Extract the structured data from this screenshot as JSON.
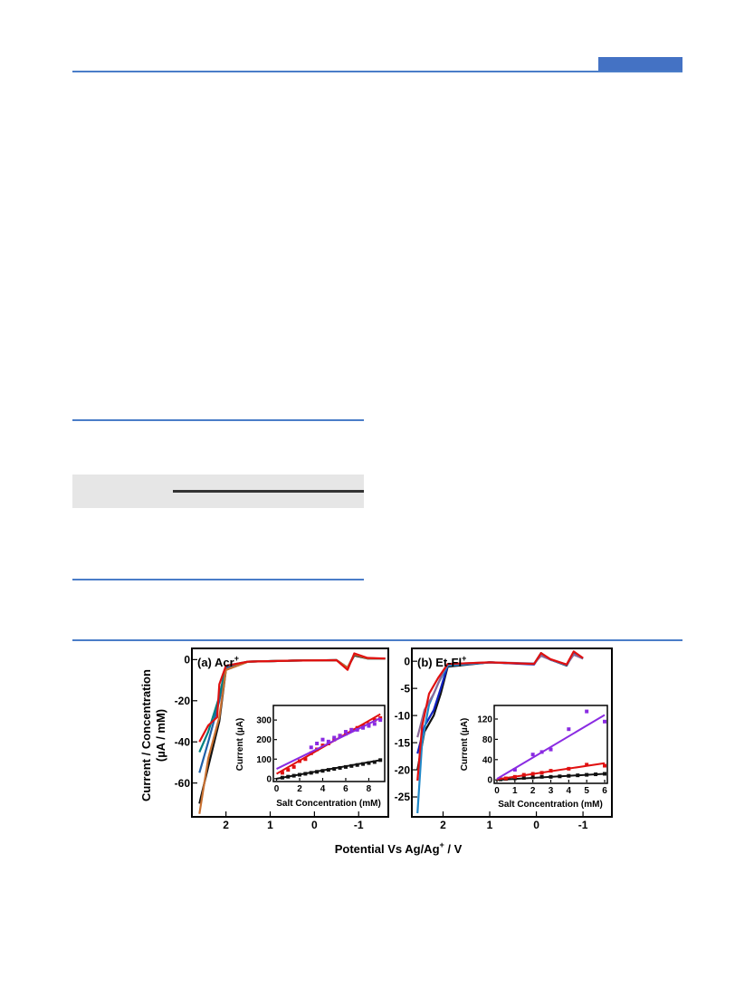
{
  "header": {
    "accent_color": "#4472c4",
    "rule_color": "#4a7dc8"
  },
  "figure": {
    "shared_ylabel_line1": "Current / Concentration",
    "shared_ylabel_line2": "(µA / mM)",
    "shared_xlabel": "Potential Vs Ag/Ag",
    "shared_xlabel_sup": "+",
    "shared_xlabel_tail": " / V"
  },
  "chart_data": [
    {
      "type": "line",
      "panel_label": "(a) Acr",
      "panel_label_sup": "+",
      "xlabel": "",
      "ylabel": "",
      "x_reversed": true,
      "xlim": [
        2.75,
        -1.65
      ],
      "ylim": [
        -76,
        5
      ],
      "x_ticks": [
        "2",
        "1",
        "0",
        "-1"
      ],
      "x_tick_values": [
        2,
        1,
        0,
        -1
      ],
      "y_ticks": [
        "0",
        "-20",
        "-40",
        "-60"
      ],
      "y_tick_values": [
        0,
        -20,
        -40,
        -60
      ],
      "series": [
        {
          "color": "#111111",
          "points": [
            [
              2.6,
              -70
            ],
            [
              2.4,
              -52
            ],
            [
              2.15,
              -30
            ],
            [
              2.0,
              -5
            ],
            [
              1.5,
              -1
            ],
            [
              0.5,
              -0.5
            ],
            [
              -0.5,
              -0.3
            ],
            [
              -0.75,
              -4
            ],
            [
              -0.9,
              2
            ],
            [
              -1.2,
              0.5
            ],
            [
              -1.6,
              0.5
            ]
          ]
        },
        {
          "color": "#2060a8",
          "points": [
            [
              2.6,
              -55
            ],
            [
              2.4,
              -40
            ],
            [
              2.15,
              -20
            ],
            [
              2.0,
              -4
            ],
            [
              1.5,
              -1
            ],
            [
              0.5,
              -0.5
            ],
            [
              -0.5,
              -0.3
            ],
            [
              -0.75,
              -4
            ],
            [
              -0.9,
              2.5
            ],
            [
              -1.2,
              0.6
            ],
            [
              -1.6,
              0.5
            ]
          ]
        },
        {
          "color": "#008080",
          "points": [
            [
              2.6,
              -45
            ],
            [
              2.4,
              -35
            ],
            [
              2.15,
              -18
            ],
            [
              2.0,
              -3
            ],
            [
              1.5,
              -1
            ],
            [
              0.5,
              -0.5
            ],
            [
              -0.5,
              -0.3
            ],
            [
              -0.75,
              -4
            ],
            [
              -0.9,
              2.5
            ],
            [
              -1.2,
              0.6
            ],
            [
              -1.6,
              0.5
            ]
          ]
        },
        {
          "color": "#c87030",
          "points": [
            [
              2.6,
              -75
            ],
            [
              2.4,
              -48
            ],
            [
              2.15,
              -28
            ],
            [
              2.0,
              -5
            ],
            [
              1.5,
              -1
            ],
            [
              0.5,
              -0.5
            ],
            [
              -0.5,
              -0.3
            ],
            [
              -0.75,
              -4
            ],
            [
              -0.9,
              2.5
            ],
            [
              -1.2,
              0.6
            ],
            [
              -1.6,
              0.5
            ]
          ]
        },
        {
          "color": "#e01010",
          "points": [
            [
              2.6,
              -40
            ],
            [
              2.4,
              -32
            ],
            [
              2.2,
              -28
            ],
            [
              2.15,
              -12
            ],
            [
              2.0,
              -3
            ],
            [
              1.5,
              -1
            ],
            [
              0.5,
              -0.5
            ],
            [
              -0.5,
              -0.3
            ],
            [
              -0.75,
              -5
            ],
            [
              -0.9,
              3
            ],
            [
              -1.2,
              0.8
            ],
            [
              -1.6,
              0.5
            ]
          ]
        }
      ],
      "inset": {
        "type": "scatter",
        "xlabel": "Salt Concentration (mM)",
        "ylabel": "Current (µA)",
        "xlim": [
          -0.2,
          9.3
        ],
        "ylim": [
          -10,
          370
        ],
        "x_ticks": [
          "0",
          "2",
          "4",
          "6",
          "8"
        ],
        "x_tick_values": [
          0,
          2,
          4,
          6,
          8
        ],
        "y_ticks": [
          "0",
          "100",
          "200",
          "300"
        ],
        "y_tick_values": [
          0,
          100,
          200,
          300
        ],
        "series": [
          {
            "color": "#111111",
            "marker": "square",
            "x": [
              0.5,
              1,
              1.5,
              2,
              2.5,
              3,
              3.5,
              4,
              4.5,
              5,
              5.5,
              6,
              6.5,
              7,
              7.5,
              8,
              8.5,
              9
            ],
            "y": [
              5,
              10,
              15,
              20,
              25,
              30,
              35,
              40,
              45,
              50,
              55,
              60,
              65,
              70,
              75,
              80,
              85,
              95
            ],
            "fit": [
              [
                0,
                0
              ],
              [
                9,
                95
              ]
            ]
          },
          {
            "color": "#e01010",
            "marker": "square",
            "x": [
              0.5,
              1,
              1.5,
              2,
              2.5,
              3,
              3.5,
              4,
              4.5,
              5,
              5.5,
              6,
              6.5,
              7,
              7.5,
              8,
              8.5,
              9
            ],
            "y": [
              30,
              45,
              60,
              90,
              100,
              130,
              150,
              170,
              180,
              200,
              220,
              230,
              250,
              260,
              270,
              280,
              300,
              310
            ],
            "fit": [
              [
                0,
                25
              ],
              [
                9,
                330
              ]
            ]
          },
          {
            "color": "#8a2be2",
            "marker": "square",
            "x": [
              3,
              3.5,
              4,
              4.5,
              5,
              5.5,
              6,
              6.5,
              7,
              7.5,
              8,
              8.5,
              9
            ],
            "y": [
              160,
              180,
              200,
              190,
              210,
              220,
              240,
              250,
              250,
              260,
              270,
              280,
              300
            ],
            "fit": [
              [
                0,
                50
              ],
              [
                9,
                310
              ]
            ]
          }
        ]
      }
    },
    {
      "type": "line",
      "panel_label": "(b) Et-Fl",
      "panel_label_sup": "+",
      "xlabel": "",
      "ylabel": "",
      "x_reversed": true,
      "xlim": [
        2.65,
        -1.6
      ],
      "ylim": [
        -28.5,
        2.2
      ],
      "x_ticks": [
        "2",
        "1",
        "0",
        "-1"
      ],
      "x_tick_values": [
        2,
        1,
        0,
        -1
      ],
      "y_ticks": [
        "0",
        "-5",
        "-10",
        "-15",
        "-20",
        "-25"
      ],
      "y_tick_values": [
        0,
        -5,
        -10,
        -15,
        -20,
        -25
      ],
      "series": [
        {
          "color": "#111111",
          "points": [
            [
              2.55,
              -20
            ],
            [
              2.4,
              -13
            ],
            [
              2.2,
              -10
            ],
            [
              2.05,
              -6
            ],
            [
              1.9,
              -1
            ],
            [
              1.0,
              -0.2
            ],
            [
              0.05,
              -0.5
            ],
            [
              -0.1,
              1.5
            ],
            [
              -0.3,
              0.3
            ],
            [
              -0.65,
              -0.8
            ],
            [
              -0.8,
              1.5
            ],
            [
              -1.0,
              0.5
            ]
          ]
        },
        {
          "color": "#1020c0",
          "points": [
            [
              2.55,
              -17
            ],
            [
              2.4,
              -12
            ],
            [
              2.2,
              -9
            ],
            [
              2.05,
              -5
            ],
            [
              1.9,
              -0.8
            ],
            [
              1.0,
              -0.2
            ],
            [
              0.05,
              -0.6
            ],
            [
              -0.1,
              1.3
            ],
            [
              -0.3,
              0.3
            ],
            [
              -0.65,
              -0.7
            ],
            [
              -0.8,
              1.4
            ],
            [
              -1.0,
              0.5
            ]
          ]
        },
        {
          "color": "#2088c8",
          "points": [
            [
              2.55,
              -28
            ],
            [
              2.45,
              -15
            ],
            [
              2.3,
              -8
            ],
            [
              2.1,
              -4
            ],
            [
              1.9,
              -0.8
            ],
            [
              1.0,
              -0.2
            ],
            [
              0.05,
              -0.5
            ],
            [
              -0.1,
              1.2
            ],
            [
              -0.3,
              0.3
            ],
            [
              -0.65,
              -0.7
            ],
            [
              -0.8,
              1.3
            ],
            [
              -1.0,
              0.5
            ]
          ]
        },
        {
          "color": "#8a6a9a",
          "points": [
            [
              2.55,
              -14
            ],
            [
              2.4,
              -9
            ],
            [
              2.2,
              -6
            ],
            [
              2.0,
              -2
            ],
            [
              1.9,
              -0.5
            ],
            [
              1.0,
              -0.2
            ],
            [
              0.05,
              -0.4
            ],
            [
              -0.1,
              1.0
            ],
            [
              -0.3,
              0.3
            ],
            [
              -0.65,
              -0.6
            ],
            [
              -0.8,
              1.2
            ],
            [
              -1.0,
              0.5
            ]
          ]
        },
        {
          "color": "#e01010",
          "points": [
            [
              2.55,
              -22
            ],
            [
              2.45,
              -12
            ],
            [
              2.3,
              -6
            ],
            [
              2.1,
              -3
            ],
            [
              1.9,
              -0.5
            ],
            [
              1.0,
              -0.2
            ],
            [
              0.05,
              -0.5
            ],
            [
              -0.1,
              1.5
            ],
            [
              -0.3,
              0.4
            ],
            [
              -0.65,
              -0.6
            ],
            [
              -0.8,
              1.8
            ],
            [
              -1.0,
              0.6
            ]
          ]
        }
      ],
      "inset": {
        "type": "scatter",
        "xlabel": "Salt Concentration (mM)",
        "ylabel": "Current (µA)",
        "xlim": [
          -0.1,
          6.1
        ],
        "ylim": [
          -5,
          145
        ],
        "x_ticks": [
          "0",
          "1",
          "2",
          "3",
          "4",
          "5",
          "6"
        ],
        "x_tick_values": [
          0,
          1,
          2,
          3,
          4,
          5,
          6
        ],
        "y_ticks": [
          "0",
          "40",
          "80",
          "120"
        ],
        "y_tick_values": [
          0,
          40,
          80,
          120
        ],
        "series": [
          {
            "color": "#111111",
            "marker": "square",
            "x": [
              0.2,
              0.5,
              1,
              1.5,
              2,
              2.5,
              3,
              3.5,
              4,
              4.5,
              5,
              5.5,
              6
            ],
            "y": [
              1,
              2,
              3,
              4,
              5,
              6,
              6,
              7,
              8,
              9,
              10,
              11,
              12
            ],
            "fit": [
              [
                0,
                0
              ],
              [
                6,
                12
              ]
            ]
          },
          {
            "color": "#e01010",
            "marker": "square",
            "x": [
              0.5,
              1,
              1.5,
              2,
              2.5,
              3,
              4,
              5,
              6
            ],
            "y": [
              3,
              6,
              10,
              12,
              14,
              18,
              22,
              30,
              28
            ],
            "fit": [
              [
                0,
                1
              ],
              [
                6,
                33
              ]
            ]
          },
          {
            "color": "#8a2be2",
            "marker": "square",
            "x": [
              1,
              2,
              2.5,
              3,
              4,
              5,
              6
            ],
            "y": [
              20,
              50,
              55,
              60,
              100,
              135,
              115
            ],
            "fit": [
              [
                0,
                2
              ],
              [
                6,
                128
              ]
            ]
          }
        ]
      }
    }
  ]
}
